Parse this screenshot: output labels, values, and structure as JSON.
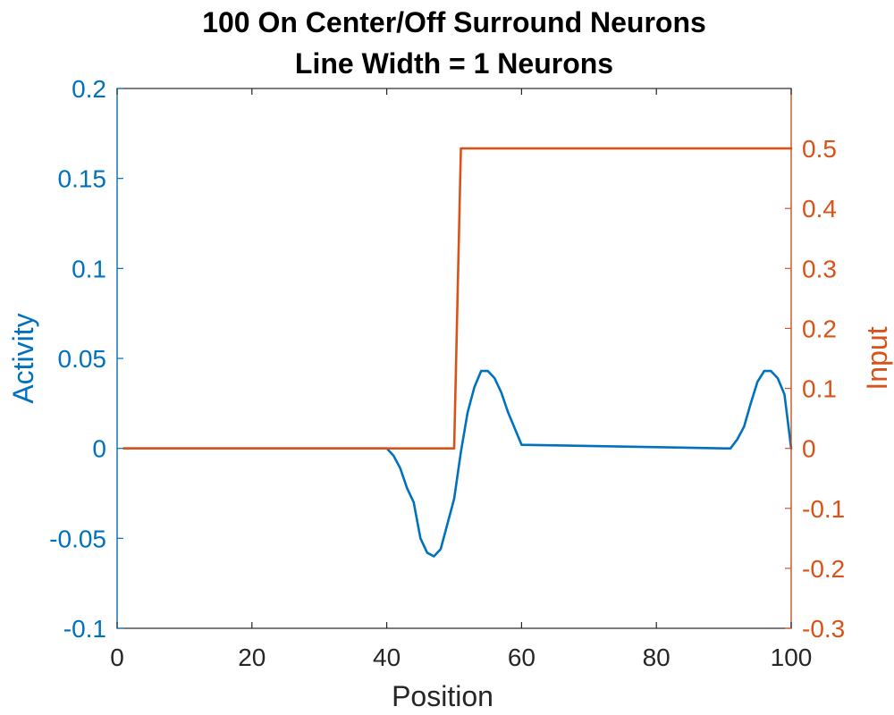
{
  "chart_data": {
    "type": "line",
    "title": "100 On Center/Off Surround Neurons",
    "subtitle": "Line Width = 1 Neurons",
    "xlabel": "Position",
    "ylabel_left": "Activity",
    "ylabel_right": "Input",
    "xlim": [
      0,
      100
    ],
    "ylim_left": [
      -0.1,
      0.2
    ],
    "ylim_right": [
      -0.3,
      0.6
    ],
    "x_ticks": [
      "0",
      "20",
      "40",
      "60",
      "80",
      "100"
    ],
    "y_ticks_left": [
      "-0.1",
      "-0.05",
      "0",
      "0.05",
      "0.1",
      "0.15",
      "0.2"
    ],
    "y_ticks_right": [
      "-0.3",
      "-0.2",
      "-0.1",
      "0",
      "0.1",
      "0.2",
      "0.3",
      "0.4",
      "0.5"
    ],
    "grid": false,
    "colors": {
      "left_axis": "#0072bd",
      "right_axis": "#d95319",
      "box": "#262626"
    },
    "series": [
      {
        "axis": "left",
        "color": "#0072bd",
        "x": [
          1,
          40,
          41,
          42,
          43,
          44,
          45,
          46,
          47,
          48,
          49,
          50,
          51,
          52,
          53,
          54,
          55,
          56,
          57,
          58,
          59,
          60,
          90,
          91,
          92,
          93,
          94,
          95,
          96,
          97,
          98,
          99,
          100
        ],
        "y": [
          0,
          0,
          -0.004,
          -0.011,
          -0.022,
          -0.03,
          -0.05,
          -0.058,
          -0.06,
          -0.056,
          -0.042,
          -0.028,
          -0.002,
          0.02,
          0.034,
          0.043,
          0.043,
          0.039,
          0.031,
          0.02,
          0.011,
          0.002,
          0,
          0,
          0.005,
          0.012,
          0.025,
          0.037,
          0.043,
          0.043,
          0.039,
          0.03,
          0
        ]
      },
      {
        "axis": "right",
        "color": "#d95319",
        "x": [
          1,
          50,
          51,
          100
        ],
        "y": [
          0,
          0,
          0.5,
          0.5
        ]
      }
    ]
  }
}
